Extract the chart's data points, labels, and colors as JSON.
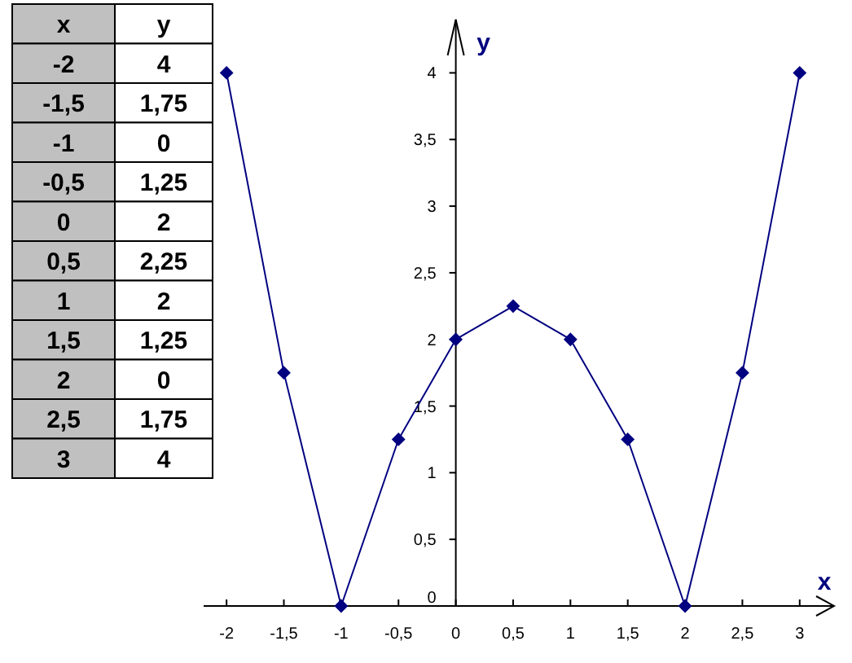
{
  "chart_data": {
    "type": "line",
    "xlabel": "x",
    "ylabel": "y",
    "x": [
      -2,
      -1.5,
      -1,
      -0.5,
      0,
      0.5,
      1,
      1.5,
      2,
      2.5,
      3
    ],
    "series": [
      {
        "color": "#000080",
        "values": [
          4,
          1.75,
          0,
          1.25,
          2,
          2.25,
          2,
          1.25,
          0,
          1.75,
          4
        ]
      }
    ],
    "xlim": [
      -2.2,
      3.3
    ],
    "ylim": [
      0,
      4.4
    ],
    "xticks": [
      {
        "value": -2,
        "label": "-2"
      },
      {
        "value": -1.5,
        "label": "-1,5"
      },
      {
        "value": -1,
        "label": "-1"
      },
      {
        "value": -0.5,
        "label": "-0,5"
      },
      0,
      {
        "value": 0.5,
        "label": "0,5"
      },
      1,
      {
        "value": 1.5,
        "label": "1,5"
      },
      2,
      {
        "value": 2.5,
        "label": "2,5"
      },
      3
    ],
    "yticks": [
      0,
      {
        "value": 0.5,
        "label": "0,5"
      },
      1,
      {
        "value": 1.5,
        "label": "1,5"
      },
      2,
      {
        "value": 2.5,
        "label": "2,5"
      },
      3,
      {
        "value": 3.5,
        "label": "3,5"
      },
      4
    ],
    "marker": "diamond",
    "line_style": "solid",
    "annotations": [
      "-2",
      "4",
      "-1,5",
      "1,75",
      "-1",
      "0",
      "-0,5",
      "1,25",
      "0",
      "2",
      "0,5",
      "2,25",
      "1",
      "2",
      "1,5",
      "1,25",
      "2",
      "0",
      "2,5",
      "1,75",
      "3",
      "4"
    ]
  }
}
